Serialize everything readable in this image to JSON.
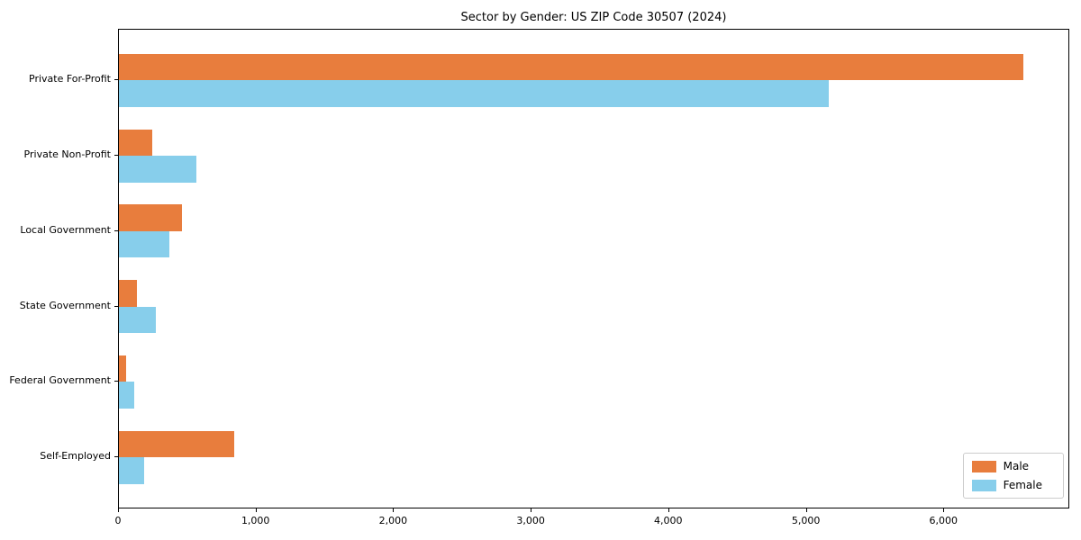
{
  "chart_data": {
    "type": "bar",
    "orientation": "horizontal",
    "title": "Sector by Gender: US ZIP Code 30507 (2024)",
    "categories": [
      "Private For-Profit",
      "Private Non-Profit",
      "Local Government",
      "State Government",
      "Federal Government",
      "Self-Employed"
    ],
    "series": [
      {
        "name": "Male",
        "color": "#e87d3d",
        "values": [
          6575,
          240,
          460,
          130,
          50,
          840
        ]
      },
      {
        "name": "Female",
        "color": "#87ceeb",
        "values": [
          5160,
          560,
          365,
          265,
          113,
          180
        ]
      }
    ],
    "xlabel": "",
    "ylabel": "",
    "xlim": [
      0,
      6915
    ],
    "xticks": [
      0,
      1000,
      2000,
      3000,
      4000,
      5000,
      6000
    ],
    "xtick_labels": [
      "0",
      "1,000",
      "2,000",
      "3,000",
      "4,000",
      "5,000",
      "6,000"
    ],
    "grid": false,
    "legend": {
      "position": "lower-right",
      "entries": [
        "Male",
        "Female"
      ]
    }
  }
}
